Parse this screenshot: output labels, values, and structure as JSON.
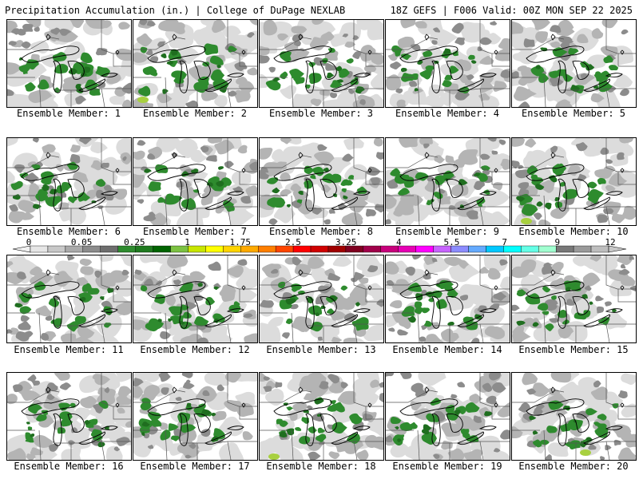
{
  "header": {
    "left_title": "Precipitation Accumulation (in.) | College of DuPage NEXLAB",
    "right_title": "18Z GEFS | F006 Valid: 00Z MON SEP 22 2025"
  },
  "map": {
    "region": "Great Lakes / Upper Midwest",
    "panel_count": 20,
    "rows": 4,
    "columns": 5
  },
  "panels": [
    {
      "label": "Ensemble Member: 1"
    },
    {
      "label": "Ensemble Member: 2"
    },
    {
      "label": "Ensemble Member: 3"
    },
    {
      "label": "Ensemble Member: 4"
    },
    {
      "label": "Ensemble Member: 5"
    },
    {
      "label": "Ensemble Member: 6"
    },
    {
      "label": "Ensemble Member: 7"
    },
    {
      "label": "Ensemble Member: 8"
    },
    {
      "label": "Ensemble Member: 9"
    },
    {
      "label": "Ensemble Member: 10"
    },
    {
      "label": "Ensemble Member: 11"
    },
    {
      "label": "Ensemble Member: 12"
    },
    {
      "label": "Ensemble Member: 13"
    },
    {
      "label": "Ensemble Member: 14"
    },
    {
      "label": "Ensemble Member: 15"
    },
    {
      "label": "Ensemble Member: 16"
    },
    {
      "label": "Ensemble Member: 17"
    },
    {
      "label": "Ensemble Member: 18"
    },
    {
      "label": "Ensemble Member: 19"
    },
    {
      "label": "Ensemble Member: 20"
    }
  ],
  "colorbar": {
    "labels": [
      "0",
      "0.05",
      "0.25",
      "1",
      "1.75",
      "2.5",
      "3.25",
      "4",
      "5.5",
      "7",
      "9",
      "12"
    ],
    "colors": [
      "#e6e6e6",
      "#c8c8c8",
      "#aaaaaa",
      "#8c8c8c",
      "#6e6e6e",
      "#2e8b2e",
      "#1f7a1f",
      "#006400",
      "#7cc242",
      "#c8e600",
      "#ffff00",
      "#ffd400",
      "#ffaa00",
      "#ff7f00",
      "#ff4500",
      "#ff0000",
      "#d00000",
      "#a00000",
      "#800020",
      "#a0004a",
      "#c8007c",
      "#e600b4",
      "#ff00ff",
      "#c864ff",
      "#8c8cff",
      "#64aaff",
      "#00c8ff",
      "#00ffff",
      "#64ffe6",
      "#a0ffd0",
      "#787878",
      "#9a9a9a",
      "#bebebe"
    ]
  },
  "colors": {
    "light_gray": "#dcdcdc",
    "mid_gray": "#b4b4b4",
    "dark_gray": "#8c8c8c",
    "green": "#2e8b2e",
    "dark_green": "#1f6e1f",
    "yellow_green": "#a8d040",
    "coastline": "#000000",
    "borders": "#555555"
  }
}
